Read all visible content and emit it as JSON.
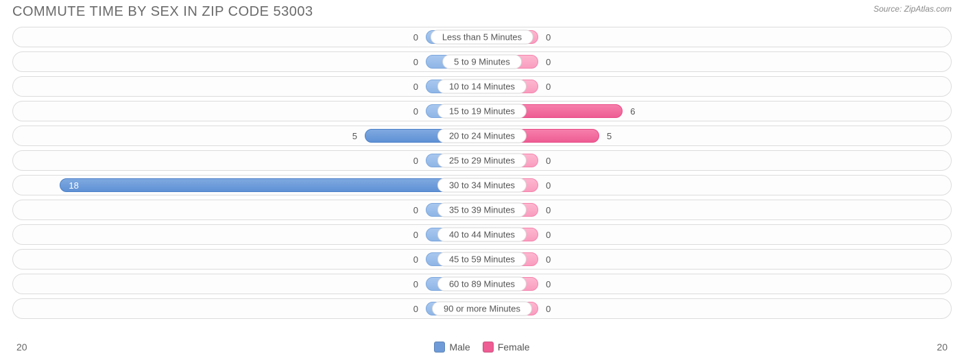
{
  "title": "COMMUTE TIME BY SEX IN ZIP CODE 53003",
  "source": "Source: ZipAtlas.com",
  "axis_max": 20,
  "axis_left_label": "20",
  "axis_right_label": "20",
  "legend": {
    "male": {
      "label": "Male",
      "color": "#6f9bd8"
    },
    "female": {
      "label": "Female",
      "color": "#ee5d93"
    }
  },
  "colors": {
    "male_light": "#93b9e7",
    "male_strong": "#6693d4",
    "female_light": "#f9a5c4",
    "female_strong": "#ee6b9a",
    "row_border": "#dcdcdc",
    "text": "#555555",
    "background": "#ffffff"
  },
  "min_bar_pct": 12,
  "rows": [
    {
      "label": "Less than 5 Minutes",
      "male": 0,
      "female": 0
    },
    {
      "label": "5 to 9 Minutes",
      "male": 0,
      "female": 0
    },
    {
      "label": "10 to 14 Minutes",
      "male": 0,
      "female": 0
    },
    {
      "label": "15 to 19 Minutes",
      "male": 0,
      "female": 6
    },
    {
      "label": "20 to 24 Minutes",
      "male": 5,
      "female": 5
    },
    {
      "label": "25 to 29 Minutes",
      "male": 0,
      "female": 0
    },
    {
      "label": "30 to 34 Minutes",
      "male": 18,
      "female": 0
    },
    {
      "label": "35 to 39 Minutes",
      "male": 0,
      "female": 0
    },
    {
      "label": "40 to 44 Minutes",
      "male": 0,
      "female": 0
    },
    {
      "label": "45 to 59 Minutes",
      "male": 0,
      "female": 0
    },
    {
      "label": "60 to 89 Minutes",
      "male": 0,
      "female": 0
    },
    {
      "label": "90 or more Minutes",
      "male": 0,
      "female": 0
    }
  ]
}
